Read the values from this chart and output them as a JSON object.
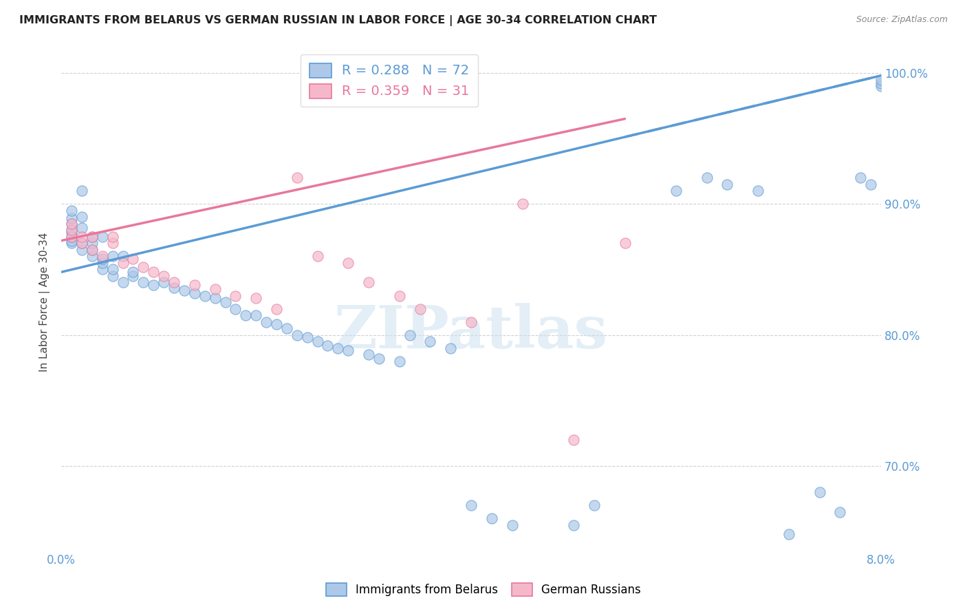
{
  "title": "IMMIGRANTS FROM BELARUS VS GERMAN RUSSIAN IN LABOR FORCE | AGE 30-34 CORRELATION CHART",
  "source": "Source: ZipAtlas.com",
  "ylabel": "In Labor Force | Age 30-34",
  "xlim": [
    0.0,
    0.08
  ],
  "ylim": [
    0.635,
    1.015
  ],
  "xticks": [
    0.0,
    0.01,
    0.02,
    0.03,
    0.04,
    0.05,
    0.06,
    0.07,
    0.08
  ],
  "xticklabels": [
    "0.0%",
    "",
    "",
    "",
    "",
    "",
    "",
    "",
    "8.0%"
  ],
  "yticks": [
    0.7,
    0.8,
    0.9,
    1.0
  ],
  "yticklabels": [
    "70.0%",
    "80.0%",
    "90.0%",
    "100.0%"
  ],
  "blue_R": 0.288,
  "blue_N": 72,
  "pink_R": 0.359,
  "pink_N": 31,
  "blue_color": "#adc8e8",
  "pink_color": "#f5b8cb",
  "blue_line_color": "#5b9bd5",
  "pink_line_color": "#e8789a",
  "legend_label_blue": "Immigrants from Belarus",
  "legend_label_pink": "German Russians",
  "watermark": "ZIPatlas",
  "blue_x": [
    0.001,
    0.001,
    0.001,
    0.001,
    0.001,
    0.001,
    0.001,
    0.001,
    0.002,
    0.002,
    0.002,
    0.002,
    0.002,
    0.003,
    0.003,
    0.003,
    0.003,
    0.004,
    0.004,
    0.004,
    0.004,
    0.005,
    0.005,
    0.005,
    0.006,
    0.006,
    0.007,
    0.007,
    0.008,
    0.009,
    0.01,
    0.011,
    0.012,
    0.013,
    0.014,
    0.015,
    0.016,
    0.017,
    0.018,
    0.019,
    0.02,
    0.021,
    0.022,
    0.023,
    0.024,
    0.025,
    0.026,
    0.027,
    0.028,
    0.03,
    0.031,
    0.033,
    0.034,
    0.036,
    0.038,
    0.04,
    0.042,
    0.044,
    0.05,
    0.052,
    0.06,
    0.063,
    0.065,
    0.068,
    0.071,
    0.074,
    0.076,
    0.078,
    0.079,
    0.08,
    0.08,
    0.08
  ],
  "blue_y": [
    0.87,
    0.872,
    0.875,
    0.878,
    0.88,
    0.885,
    0.889,
    0.895,
    0.865,
    0.87,
    0.882,
    0.89,
    0.91,
    0.86,
    0.865,
    0.87,
    0.875,
    0.85,
    0.855,
    0.858,
    0.875,
    0.845,
    0.85,
    0.86,
    0.84,
    0.86,
    0.845,
    0.848,
    0.84,
    0.838,
    0.84,
    0.836,
    0.834,
    0.832,
    0.83,
    0.828,
    0.825,
    0.82,
    0.815,
    0.815,
    0.81,
    0.808,
    0.805,
    0.8,
    0.798,
    0.795,
    0.792,
    0.79,
    0.788,
    0.785,
    0.782,
    0.78,
    0.8,
    0.795,
    0.79,
    0.67,
    0.66,
    0.655,
    0.655,
    0.67,
    0.91,
    0.92,
    0.915,
    0.91,
    0.648,
    0.68,
    0.665,
    0.92,
    0.915,
    0.99,
    0.992,
    0.995
  ],
  "pink_x": [
    0.001,
    0.001,
    0.001,
    0.002,
    0.002,
    0.003,
    0.003,
    0.004,
    0.005,
    0.005,
    0.006,
    0.007,
    0.008,
    0.009,
    0.01,
    0.011,
    0.013,
    0.015,
    0.017,
    0.019,
    0.021,
    0.023,
    0.025,
    0.028,
    0.03,
    0.033,
    0.035,
    0.04,
    0.045,
    0.05,
    0.055
  ],
  "pink_y": [
    0.875,
    0.88,
    0.885,
    0.87,
    0.875,
    0.865,
    0.875,
    0.86,
    0.87,
    0.875,
    0.855,
    0.858,
    0.852,
    0.848,
    0.845,
    0.84,
    0.838,
    0.835,
    0.83,
    0.828,
    0.82,
    0.92,
    0.86,
    0.855,
    0.84,
    0.83,
    0.82,
    0.81,
    0.9,
    0.72,
    0.87
  ],
  "blue_line_x0": 0.0,
  "blue_line_y0": 0.848,
  "blue_line_x1": 0.08,
  "blue_line_y1": 0.998,
  "pink_line_x0": 0.0,
  "pink_line_y0": 0.872,
  "pink_line_x1": 0.055,
  "pink_line_y1": 0.965
}
